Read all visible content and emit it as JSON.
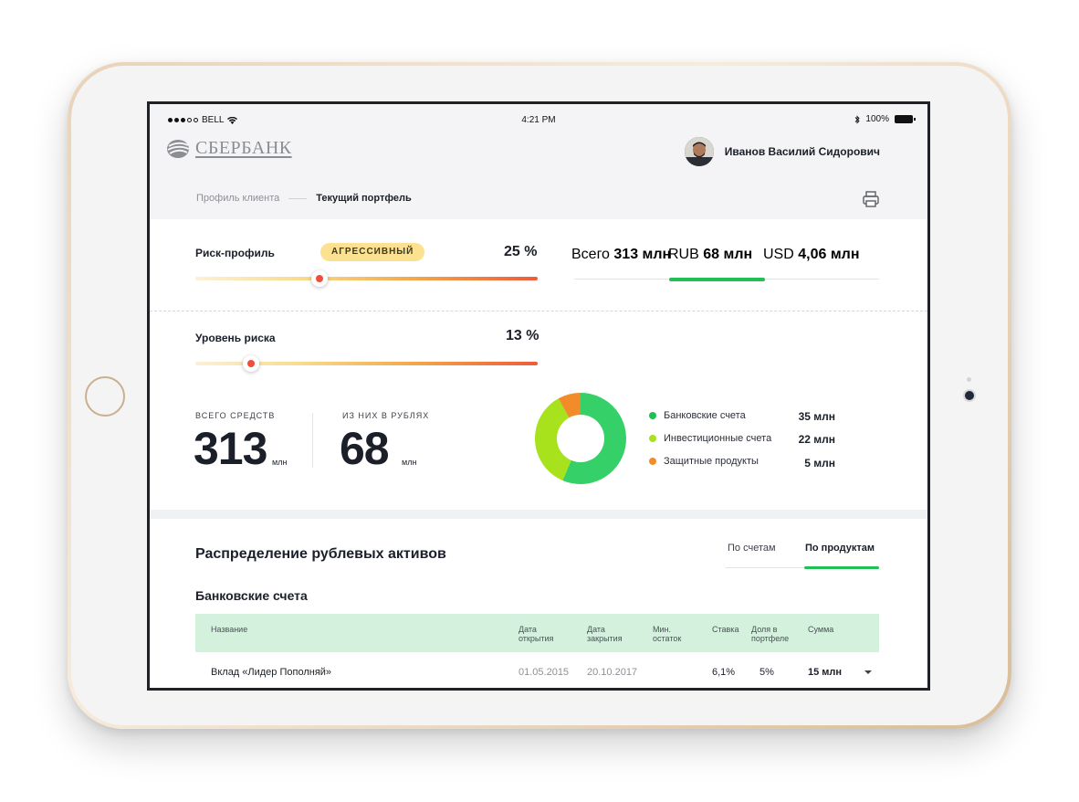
{
  "status_bar": {
    "carrier": "BELL",
    "time": "4:21 PM",
    "battery": "100%"
  },
  "header": {
    "logo_text": "СБЕРБАНК",
    "user_name": "Иванов Василий Сидорович"
  },
  "breadcrumb": {
    "items": [
      "Профиль клиента",
      "Текущий портфель"
    ]
  },
  "risk_profile": {
    "label": "Риск-профиль",
    "badge": "АГРЕССИВНЫЙ",
    "percent_text": "25 %",
    "value": 0.25
  },
  "risk_level": {
    "label": "Уровень риска",
    "percent_text": "13 %",
    "value": 0.13
  },
  "totals": {
    "all_label": "Всего",
    "all_value": "313 млн",
    "rub_label": "RUB",
    "rub_value": "68 млн",
    "usd_label": "USD",
    "usd_value": "4,06 млн",
    "active": "rub"
  },
  "funds": {
    "total_label": "ВСЕГО СРЕДСТВ",
    "total_value": "313",
    "total_unit": "млн",
    "rub_label": "ИЗ НИХ В РУБЛЯХ",
    "rub_value": "68",
    "rub_unit": "млн"
  },
  "colors": {
    "green": "#21c054",
    "lime": "#a7e21c",
    "orange": "#f28c2b",
    "donut_green": "#35d067"
  },
  "legend": [
    {
      "name": "Банковские счета",
      "value": "35 млн",
      "amount": 35,
      "color": "#21c054"
    },
    {
      "name": "Инвестиционные счета",
      "value": "22 млн",
      "amount": 22,
      "color": "#a7e21c"
    },
    {
      "name": "Защитные продукты",
      "value": "5 млн",
      "amount": 5,
      "color": "#f28c2b"
    }
  ],
  "distribution": {
    "title": "Распределение рублевых активов",
    "tabs": [
      "По счетам",
      "По продуктам"
    ],
    "active_tab": 1,
    "subtitle": "Банковские счета"
  },
  "table": {
    "headers": {
      "name": "Название",
      "open": "Дата открытия",
      "close": "Дата закрытия",
      "min": "Мин. остаток",
      "rate": "Ставка",
      "share": "Доля в портфеле",
      "sum": "Сумма"
    },
    "row": {
      "name": "Вклад «Лидер Пополняй»",
      "open": "01.05.2015",
      "close": "20.10.2017",
      "min": "",
      "rate": "6,1%",
      "share": "5%",
      "sum": "15 млн"
    }
  }
}
